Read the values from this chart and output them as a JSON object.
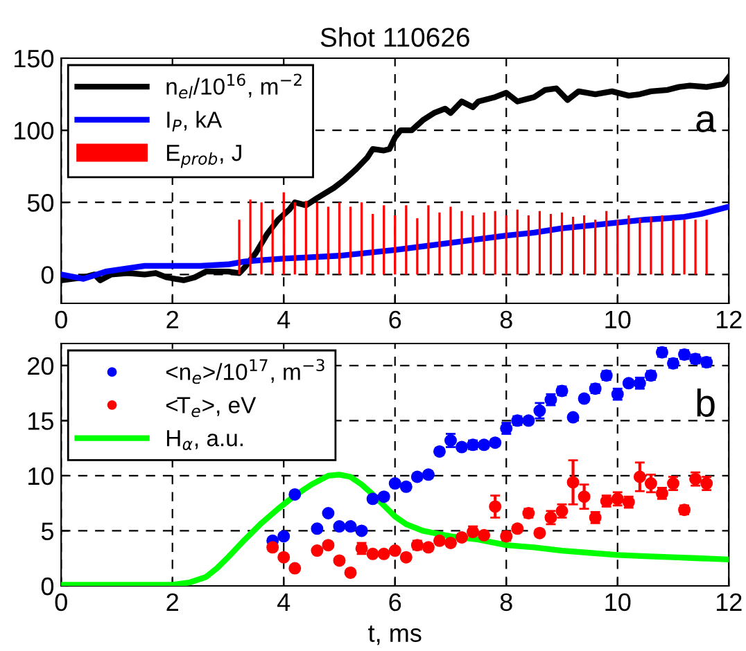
{
  "chart_data": [
    {
      "type": "line",
      "title": "Shot 110626",
      "xlim": [
        0,
        12
      ],
      "xticks": [
        0,
        2,
        4,
        6,
        8,
        10,
        12
      ],
      "ylim": [
        -20,
        150
      ],
      "yticks": [
        0,
        50,
        100,
        150
      ],
      "grid": true,
      "legend": "top left",
      "annotations": [
        "a"
      ],
      "series": [
        {
          "name": "n$_{el}$/10$^{16}$, m$^{−2}$",
          "color": "#000000",
          "x": [
            0,
            0.2,
            0.4,
            0.6,
            0.7,
            0.9,
            1.2,
            1.5,
            1.7,
            1.9,
            2.2,
            2.4,
            2.6,
            3.0,
            3.2,
            3.3,
            3.5,
            3.7,
            3.9,
            4.1,
            4.2,
            4.4,
            4.6,
            4.9,
            5.1,
            5.3,
            5.5,
            5.6,
            5.8,
            5.9,
            6.0,
            6.1,
            6.3,
            6.5,
            6.7,
            6.9,
            7.0,
            7.2,
            7.4,
            7.5,
            7.8,
            8.0,
            8.2,
            8.5,
            8.7,
            8.9,
            9.1,
            9.3,
            9.6,
            9.9,
            10.2,
            10.4,
            10.6,
            10.9,
            11.1,
            11.3,
            11.6,
            11.9,
            12.0
          ],
          "values": [
            -4,
            -3,
            -2,
            0,
            -4,
            0,
            1,
            0,
            1,
            -2,
            -4,
            -2,
            2,
            2,
            1,
            5,
            15,
            28,
            38,
            45,
            50,
            48,
            53,
            60,
            66,
            73,
            81,
            87,
            86,
            87,
            95,
            100,
            100,
            107,
            112,
            115,
            112,
            120,
            116,
            120,
            123,
            126,
            120,
            123,
            128,
            129,
            121,
            127,
            125,
            127,
            124,
            125,
            127,
            128,
            130,
            131,
            130,
            132,
            137
          ]
        },
        {
          "name": "I$_{P}$, kA",
          "color": "#0000ff",
          "x": [
            0,
            0.4,
            0.8,
            1.5,
            2.5,
            3.0,
            3.3,
            3.6,
            4.0,
            4.5,
            5.0,
            6.0,
            7.0,
            8.0,
            8.5,
            9.0,
            9.5,
            10.0,
            10.5,
            10.9,
            11.2,
            11.5,
            12.0
          ],
          "values": [
            0,
            -3,
            2,
            6,
            6,
            7,
            9,
            10,
            11,
            12,
            13,
            17,
            22,
            27,
            29,
            32,
            34,
            36,
            38,
            39,
            40,
            42,
            47
          ]
        },
        {
          "name": "E$_{prob}$, J",
          "type": "bar",
          "color": "#ff0000",
          "x": [
            3.2,
            3.4,
            3.6,
            3.8,
            4.0,
            4.2,
            4.4,
            4.6,
            4.8,
            5.0,
            5.2,
            5.4,
            5.6,
            5.8,
            6.0,
            6.2,
            6.4,
            6.6,
            6.8,
            7.0,
            7.2,
            7.4,
            7.6,
            7.8,
            8.0,
            8.2,
            8.4,
            8.6,
            8.8,
            9.0,
            9.2,
            9.4,
            9.6,
            9.8,
            10.0,
            10.2,
            10.4,
            10.6,
            10.8,
            11.0,
            11.2,
            11.4,
            11.6
          ],
          "values": [
            38,
            52,
            50,
            45,
            57,
            50,
            51,
            50,
            47,
            50,
            47,
            50,
            42,
            48,
            41,
            48,
            39,
            48,
            43,
            47,
            44,
            41,
            43,
            44,
            41,
            45,
            41,
            44,
            42,
            43,
            40,
            41,
            38,
            44,
            38,
            41,
            39,
            40,
            41,
            38,
            38,
            38,
            38
          ]
        }
      ]
    },
    {
      "type": "scatter",
      "xlabel": "t, ms",
      "xlim": [
        0,
        12
      ],
      "xticks": [
        0,
        2,
        4,
        6,
        8,
        10,
        12
      ],
      "ylim": [
        0,
        22
      ],
      "yticks": [
        0,
        5,
        10,
        15,
        20
      ],
      "grid": true,
      "legend": "top left",
      "annotations": [
        "b"
      ],
      "series": [
        {
          "name": "<n$_{e}$>/10$^{17}$, m$^{−3}$",
          "marker": "circle",
          "color": "#0000ff",
          "x": [
            3.8,
            4.0,
            4.2,
            4.6,
            4.8,
            5.0,
            5.2,
            5.4,
            5.6,
            5.8,
            6.0,
            6.2,
            6.4,
            6.6,
            6.8,
            7.0,
            7.2,
            7.4,
            7.6,
            7.8,
            8.0,
            8.2,
            8.4,
            8.6,
            8.8,
            9.0,
            9.2,
            9.4,
            9.6,
            9.8,
            10.0,
            10.2,
            10.4,
            10.6,
            10.8,
            11.0,
            11.2,
            11.4,
            11.6
          ],
          "values": [
            4.1,
            4.5,
            8.3,
            5.2,
            6.6,
            5.4,
            5.4,
            5.0,
            7.9,
            8.1,
            9.3,
            9.0,
            9.9,
            10.1,
            12.2,
            13.2,
            12.6,
            12.8,
            12.8,
            13.0,
            14.3,
            15.0,
            15.0,
            15.9,
            16.9,
            17.7,
            15.3,
            17.0,
            17.9,
            19.1,
            17.4,
            18.4,
            18.4,
            19.1,
            21.2,
            20.2,
            21.0,
            20.6,
            20.3
          ],
          "errors": [
            0.2,
            0.2,
            0.2,
            0.2,
            0.2,
            0.2,
            0.2,
            0.2,
            0.3,
            0.3,
            0.3,
            0.3,
            0.3,
            0.3,
            0.3,
            0.6,
            0.3,
            0.4,
            0.3,
            0.3,
            0.5,
            0.4,
            0.3,
            0.7,
            0.5,
            0.4,
            0.2,
            0.3,
            0.4,
            0.4,
            0.5,
            0.3,
            0.5,
            0.4,
            0.4,
            0.4,
            0.4,
            0.4,
            0.4
          ]
        },
        {
          "name": "<T$_{e}$>, eV",
          "marker": "circle",
          "color": "#ff0000",
          "x": [
            3.8,
            4.0,
            4.2,
            4.6,
            4.8,
            5.0,
            5.2,
            5.4,
            5.6,
            5.8,
            6.0,
            6.2,
            6.4,
            6.6,
            6.8,
            7.0,
            7.2,
            7.4,
            7.6,
            7.8,
            8.0,
            8.2,
            8.4,
            8.6,
            8.8,
            9.0,
            9.2,
            9.4,
            9.6,
            9.8,
            10.0,
            10.2,
            10.4,
            10.6,
            10.8,
            11.0,
            11.2,
            11.4,
            11.6
          ],
          "values": [
            3.5,
            2.6,
            1.6,
            3.2,
            3.7,
            2.3,
            1.2,
            3.4,
            2.9,
            2.9,
            3.2,
            2.6,
            3.7,
            3.5,
            4.1,
            3.9,
            4.4,
            4.9,
            4.6,
            7.2,
            4.5,
            5.2,
            6.6,
            4.8,
            6.2,
            6.8,
            9.4,
            8.1,
            6.2,
            7.7,
            7.9,
            7.6,
            9.9,
            9.3,
            8.4,
            9.3,
            6.9,
            9.7,
            9.3
          ],
          "errors": [
            0.3,
            0.2,
            0.2,
            0.2,
            0.2,
            0.2,
            0.2,
            0.5,
            0.2,
            0.2,
            0.2,
            0.2,
            0.4,
            0.3,
            0.3,
            0.3,
            0.3,
            0.5,
            0.3,
            1.0,
            0.4,
            0.3,
            0.4,
            0.3,
            0.6,
            0.6,
            2.0,
            1.1,
            0.5,
            0.5,
            0.6,
            0.5,
            1.3,
            0.8,
            0.5,
            0.6,
            0.4,
            0.6,
            0.6
          ]
        },
        {
          "name": "H$_{α}$, a.u.",
          "type": "line",
          "color": "#00ff00",
          "x": [
            0,
            1,
            2,
            2.3,
            2.6,
            2.8,
            3.0,
            3.3,
            3.6,
            3.9,
            4.2,
            4.5,
            4.8,
            5.0,
            5.2,
            5.4,
            5.6,
            5.8,
            6.0,
            6.2,
            6.5,
            6.8,
            7.0,
            7.5,
            8.0,
            8.5,
            9.0,
            9.5,
            10.0,
            10.5,
            11.0,
            11.5,
            12.0
          ],
          "values": [
            0.1,
            0.1,
            0.1,
            0.3,
            0.8,
            1.6,
            2.6,
            4.2,
            5.7,
            7.0,
            8.2,
            9.2,
            10.0,
            10.1,
            9.9,
            9.2,
            8.3,
            7.3,
            6.3,
            5.6,
            5.0,
            4.7,
            4.5,
            4.2,
            3.7,
            3.5,
            3.2,
            3.0,
            2.8,
            2.7,
            2.6,
            2.5,
            2.4
          ]
        }
      ]
    }
  ]
}
